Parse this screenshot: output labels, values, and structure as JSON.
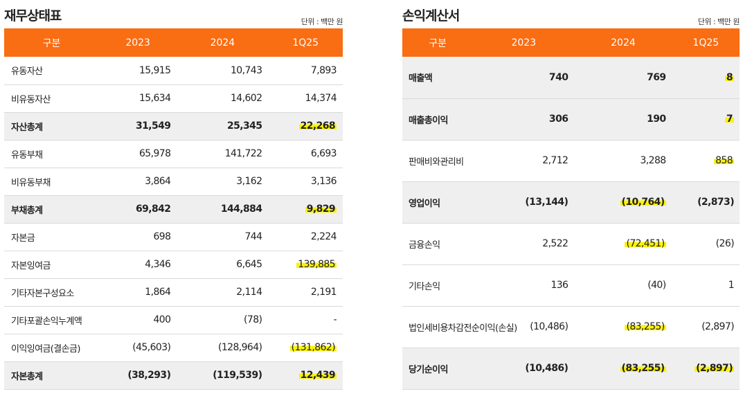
{
  "balance_sheet": {
    "title": "재무상태표",
    "unit": "단위 : 백만 원",
    "headers": [
      "구분",
      "2023",
      "2024",
      "1Q25"
    ],
    "rows": [
      {
        "label": "유동자산",
        "v2023": "15,915",
        "v2024": "10,743",
        "v1q25": "7,893",
        "bold": false,
        "hl": []
      },
      {
        "label": "비유동자산",
        "v2023": "15,634",
        "v2024": "14,602",
        "v1q25": "14,374",
        "bold": false,
        "hl": []
      },
      {
        "label": "자산총계",
        "v2023": "31,549",
        "v2024": "25,345",
        "v1q25": "22,268",
        "bold": true,
        "hl": [
          "v1q25"
        ]
      },
      {
        "label": "유동부채",
        "v2023": "65,978",
        "v2024": "141,722",
        "v1q25": "6,693",
        "bold": false,
        "hl": []
      },
      {
        "label": "비유동부채",
        "v2023": "3,864",
        "v2024": "3,162",
        "v1q25": "3,136",
        "bold": false,
        "hl": []
      },
      {
        "label": "부채총계",
        "v2023": "69,842",
        "v2024": "144,884",
        "v1q25": "9,829",
        "bold": true,
        "hl": [
          "v1q25"
        ]
      },
      {
        "label": "자본금",
        "v2023": "698",
        "v2024": "744",
        "v1q25": "2,224",
        "bold": false,
        "hl": []
      },
      {
        "label": "자본잉여금",
        "v2023": "4,346",
        "v2024": "6,645",
        "v1q25": "139,885",
        "bold": false,
        "hl": [
          "v1q25"
        ]
      },
      {
        "label": "기타자본구성요소",
        "v2023": "1,864",
        "v2024": "2,114",
        "v1q25": "2,191",
        "bold": false,
        "hl": []
      },
      {
        "label": "기타포괄손익누계액",
        "v2023": "400",
        "v2024": "(78)",
        "v1q25": "-",
        "bold": false,
        "hl": []
      },
      {
        "label": "이익잉여금(결손금)",
        "v2023": "(45,603)",
        "v2024": "(128,964)",
        "v1q25": "(131,862)",
        "bold": false,
        "hl": [
          "v1q25"
        ]
      },
      {
        "label": "자본총계",
        "v2023": "(38,293)",
        "v2024": "(119,539)",
        "v1q25": "12,439",
        "bold": true,
        "hl": [
          "v1q25"
        ]
      }
    ]
  },
  "income_statement": {
    "title": "손익계산서",
    "unit": "단위 : 백만 원",
    "headers": [
      "구분",
      "2023",
      "2024",
      "1Q25"
    ],
    "rows": [
      {
        "label": "매출액",
        "v2023": "740",
        "v2024": "769",
        "v1q25": "8",
        "bold": true,
        "hl": [
          "v1q25"
        ]
      },
      {
        "label": "매출총이익",
        "v2023": "306",
        "v2024": "190",
        "v1q25": "7",
        "bold": true,
        "hl": [
          "v1q25"
        ]
      },
      {
        "label": "판매비와관리비",
        "v2023": "2,712",
        "v2024": "3,288",
        "v1q25": "858",
        "bold": false,
        "hl": [
          "v1q25"
        ]
      },
      {
        "label": "영업이익",
        "v2023": "(13,144)",
        "v2024": "(10,764)",
        "v1q25": "(2,873)",
        "bold": true,
        "hl": [
          "v2024"
        ]
      },
      {
        "label": "금융손익",
        "v2023": "2,522",
        "v2024": "(72,451)",
        "v1q25": "(26)",
        "bold": false,
        "hl": [
          "v2024"
        ]
      },
      {
        "label": "기타손익",
        "v2023": "136",
        "v2024": "(40)",
        "v1q25": "1",
        "bold": false,
        "hl": []
      },
      {
        "label": "법인세비용차감전순이익(손실)",
        "v2023": "(10,486)",
        "v2024": "(83,255)",
        "v1q25": "(2,897)",
        "bold": false,
        "hl": [
          "v2024"
        ]
      },
      {
        "label": "당기순이익",
        "v2023": "(10,486)",
        "v2024": "(83,255)",
        "v1q25": "(2,897)",
        "bold": true,
        "hl": [
          "v2024",
          "v1q25"
        ]
      }
    ]
  },
  "colors": {
    "header_bg": "#f96d13",
    "highlight": "#fbf20a",
    "bold_row_bg": "#efefef"
  }
}
